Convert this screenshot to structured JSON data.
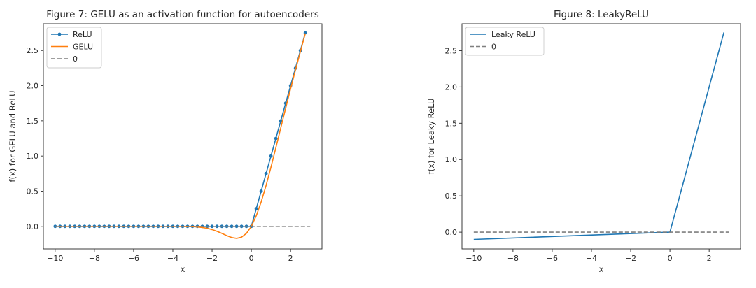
{
  "chart_data": [
    {
      "type": "line",
      "title": "Figure 7: GELU as an activation function for autoencoders",
      "xlabel": "x",
      "ylabel": "f(x) for GELU and ReLU",
      "xlim": [
        -10.6,
        3.6
      ],
      "ylim": [
        -0.32,
        2.88
      ],
      "x_ticks": [
        -10,
        -8,
        -6,
        -4,
        -2,
        0,
        2
      ],
      "y_ticks": [
        0.0,
        0.5,
        1.0,
        1.5,
        2.0,
        2.5
      ],
      "x_tick_labels": [
        "−10",
        "−8",
        "−6",
        "−4",
        "−2",
        "0",
        "2"
      ],
      "y_tick_labels": [
        "0.0",
        "0.5",
        "1.0",
        "1.5",
        "2.0",
        "2.5"
      ],
      "grid": false,
      "legend_position": "top-left",
      "series": [
        {
          "name": "ReLU",
          "color": "#1f77b4",
          "marker": "dot",
          "style": "solid",
          "function": "relu",
          "x": [
            -10,
            -9.75,
            -9.5,
            -9.25,
            -9,
            -8.75,
            -8.5,
            -8.25,
            -8,
            -7.75,
            -7.5,
            -7.25,
            -7,
            -6.75,
            -6.5,
            -6.25,
            -6,
            -5.75,
            -5.5,
            -5.25,
            -5,
            -4.75,
            -4.5,
            -4.25,
            -4,
            -3.75,
            -3.5,
            -3.25,
            -3,
            -2.75,
            -2.5,
            -2.25,
            -2,
            -1.75,
            -1.5,
            -1.25,
            -1,
            -0.75,
            -0.5,
            -0.25,
            0,
            0.25,
            0.5,
            0.75,
            1,
            1.25,
            1.5,
            1.75,
            2,
            2.25,
            2.5,
            2.75
          ],
          "y": [
            0,
            0,
            0,
            0,
            0,
            0,
            0,
            0,
            0,
            0,
            0,
            0,
            0,
            0,
            0,
            0,
            0,
            0,
            0,
            0,
            0,
            0,
            0,
            0,
            0,
            0,
            0,
            0,
            0,
            0,
            0,
            0,
            0,
            0,
            0,
            0,
            0,
            0,
            0,
            0,
            0,
            0.25,
            0.5,
            0.75,
            1,
            1.25,
            1.5,
            1.75,
            2,
            2.25,
            2.5,
            2.75
          ]
        },
        {
          "name": "GELU",
          "color": "#ff7f0e",
          "marker": "none",
          "style": "solid",
          "function": "gelu",
          "x": [
            -10,
            -9.5,
            -9,
            -8.5,
            -8,
            -7.5,
            -7,
            -6.5,
            -6,
            -5.5,
            -5,
            -4.5,
            -4,
            -3.5,
            -3,
            -2.75,
            -2.5,
            -2.25,
            -2,
            -1.75,
            -1.5,
            -1.25,
            -1,
            -0.75,
            -0.5,
            -0.25,
            0,
            0.25,
            0.5,
            0.75,
            1,
            1.25,
            1.5,
            1.75,
            2,
            2.25,
            2.5,
            2.75
          ],
          "y": [
            0,
            0,
            0,
            0,
            0,
            0,
            0,
            0,
            0,
            0,
            0,
            0,
            0,
            -0.001,
            -0.004,
            -0.008,
            -0.016,
            -0.027,
            -0.046,
            -0.07,
            -0.1,
            -0.132,
            -0.159,
            -0.17,
            -0.154,
            -0.1,
            0,
            0.15,
            0.346,
            0.58,
            0.841,
            1.118,
            1.4,
            1.68,
            1.955,
            2.223,
            2.484,
            2.742
          ]
        },
        {
          "name": "0",
          "color": "#7f7f7f",
          "marker": "none",
          "style": "dashed",
          "x": [
            -10,
            3.0
          ],
          "y": [
            0,
            0
          ]
        }
      ]
    },
    {
      "type": "line",
      "title": "Figure 8: LeakyReLU",
      "xlabel": "x",
      "ylabel": "f(x) for Leaky ReLU",
      "xlim": [
        -10.6,
        3.6
      ],
      "ylim": [
        -0.23,
        2.87
      ],
      "x_ticks": [
        -10,
        -8,
        -6,
        -4,
        -2,
        0,
        2
      ],
      "y_ticks": [
        0.0,
        0.5,
        1.0,
        1.5,
        2.0,
        2.5
      ],
      "x_tick_labels": [
        "−10",
        "−8",
        "−6",
        "−4",
        "−2",
        "0",
        "2"
      ],
      "y_tick_labels": [
        "0.0",
        "0.5",
        "1.0",
        "1.5",
        "2.0",
        "2.5"
      ],
      "grid": false,
      "legend_position": "top-left",
      "series": [
        {
          "name": "Leaky ReLU",
          "color": "#1f77b4",
          "marker": "none",
          "style": "solid",
          "function": "leaky_relu(0.01)",
          "x": [
            -10,
            0,
            2.75
          ],
          "y": [
            -0.1,
            0,
            2.75
          ]
        },
        {
          "name": "0",
          "color": "#7f7f7f",
          "marker": "none",
          "style": "dashed",
          "x": [
            -10,
            3.0
          ],
          "y": [
            0,
            0
          ]
        }
      ]
    }
  ]
}
